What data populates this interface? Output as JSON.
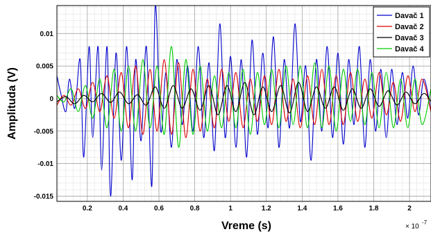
{
  "chart_data": {
    "type": "line",
    "xlabel": "Vreme (s)",
    "ylabel": "Amplituda (V)",
    "x_exponent_base": "× 10",
    "x_exponent_power": "-7",
    "xlim": [
      0.03,
      2.12
    ],
    "ylim": [
      -0.0158,
      0.0143
    ],
    "xticks": [
      0.2,
      0.4,
      0.6,
      0.8,
      1.0,
      1.2,
      1.4,
      1.6,
      1.8,
      2.0
    ],
    "xtick_labels": [
      "0.2",
      "0.4",
      "0.6",
      "0.8",
      "1",
      "1.2",
      "1.4",
      "1.6",
      "1.8",
      "2"
    ],
    "yticks": [
      0.01,
      0.005,
      0,
      -0.005,
      -0.01,
      -0.015
    ],
    "ytick_labels": [
      "0.01",
      "0.005",
      "0",
      "-0.005",
      "-0.01",
      "-0.015"
    ],
    "grid": true,
    "grid_minor": true,
    "legend_position": "top-right",
    "series": [
      {
        "name": "Davač 1",
        "color": "#0000cc",
        "x": [
          0.03,
          0.05,
          0.08,
          0.1,
          0.13,
          0.16,
          0.18,
          0.21,
          0.23,
          0.26,
          0.28,
          0.31,
          0.33,
          0.36,
          0.39,
          0.42,
          0.45,
          0.47,
          0.5,
          0.53,
          0.56,
          0.58,
          0.61,
          0.64,
          0.67,
          0.7,
          0.73,
          0.76,
          0.79,
          0.82,
          0.85,
          0.88,
          0.91,
          0.94,
          0.97,
          1.0,
          1.03,
          1.06,
          1.09,
          1.12,
          1.15,
          1.18,
          1.21,
          1.24,
          1.27,
          1.3,
          1.33,
          1.36,
          1.39,
          1.42,
          1.45,
          1.48,
          1.51,
          1.54,
          1.57,
          1.6,
          1.63,
          1.66,
          1.69,
          1.72,
          1.75,
          1.78,
          1.81,
          1.84,
          1.87,
          1.9,
          1.93,
          1.96,
          1.99,
          2.02,
          2.05,
          2.08,
          2.12
        ],
        "y": [
          0.0035,
          0.001,
          -0.002,
          0.003,
          -0.0015,
          0.006,
          -0.009,
          0.008,
          -0.006,
          0.008,
          -0.011,
          0.008,
          -0.015,
          0.007,
          -0.0095,
          0.008,
          -0.0125,
          0.006,
          -0.0065,
          0.008,
          -0.0135,
          0.0145,
          -0.005,
          0.004,
          -0.0075,
          0.006,
          -0.004,
          0.005,
          -0.005,
          0.008,
          -0.006,
          0.0055,
          -0.008,
          0.0115,
          -0.006,
          0.0065,
          -0.0075,
          0.006,
          -0.009,
          0.009,
          -0.0055,
          0.007,
          -0.0045,
          0.0095,
          -0.0075,
          0.006,
          -0.0045,
          0.0115,
          -0.0035,
          0.005,
          -0.0095,
          0.006,
          -0.005,
          0.008,
          -0.006,
          0.007,
          -0.007,
          0.006,
          -0.004,
          0.008,
          -0.0075,
          0.006,
          -0.005,
          0.0045,
          -0.006,
          0.0045,
          -0.004,
          0.004,
          -0.003,
          0.005,
          -0.0025,
          0.003,
          -0.002
        ]
      },
      {
        "name": "Davač 2",
        "color": "#dd0000",
        "x": [
          0.03,
          0.07,
          0.11,
          0.15,
          0.19,
          0.23,
          0.27,
          0.31,
          0.35,
          0.39,
          0.43,
          0.47,
          0.51,
          0.55,
          0.59,
          0.63,
          0.67,
          0.71,
          0.75,
          0.79,
          0.83,
          0.87,
          0.91,
          0.95,
          0.99,
          1.03,
          1.07,
          1.11,
          1.15,
          1.19,
          1.23,
          1.27,
          1.31,
          1.35,
          1.39,
          1.43,
          1.47,
          1.51,
          1.55,
          1.59,
          1.63,
          1.67,
          1.71,
          1.75,
          1.79,
          1.83,
          1.87,
          1.91,
          1.95,
          1.99,
          2.03,
          2.07,
          2.12
        ],
        "y": [
          -0.001,
          0.0005,
          -0.001,
          0.0015,
          -0.0015,
          0.0025,
          -0.002,
          0.0035,
          -0.003,
          0.004,
          -0.0045,
          0.005,
          -0.0055,
          0.0045,
          -0.005,
          0.006,
          -0.0055,
          0.0055,
          -0.006,
          0.0045,
          -0.005,
          0.003,
          -0.0045,
          0.0045,
          -0.0035,
          0.004,
          -0.0045,
          0.003,
          -0.0035,
          0.0035,
          -0.004,
          0.0045,
          -0.0035,
          0.003,
          -0.0045,
          0.0035,
          -0.004,
          0.0045,
          -0.004,
          0.0035,
          -0.004,
          0.004,
          -0.0035,
          0.003,
          -0.003,
          0.004,
          -0.0025,
          0.0025,
          -0.0035,
          0.0035,
          -0.002,
          0.003,
          -0.002
        ]
      },
      {
        "name": "Davač 3",
        "color": "#000000",
        "x": [
          0.03,
          0.08,
          0.13,
          0.18,
          0.23,
          0.28,
          0.33,
          0.38,
          0.43,
          0.48,
          0.53,
          0.58,
          0.63,
          0.68,
          0.73,
          0.78,
          0.83,
          0.88,
          0.93,
          0.98,
          1.03,
          1.08,
          1.13,
          1.18,
          1.23,
          1.28,
          1.33,
          1.38,
          1.43,
          1.48,
          1.53,
          1.58,
          1.63,
          1.68,
          1.73,
          1.78,
          1.83,
          1.88,
          1.93,
          1.98,
          2.03,
          2.08,
          2.12
        ],
        "y": [
          -0.0005,
          0.0003,
          -0.0008,
          0.0005,
          -0.0005,
          0.0008,
          -0.0006,
          0.001,
          -0.0008,
          0.0006,
          -0.001,
          0.0018,
          -0.0015,
          0.002,
          -0.0015,
          0.0015,
          -0.0018,
          0.002,
          -0.0025,
          0.002,
          -0.002,
          0.0025,
          -0.0025,
          0.0018,
          -0.002,
          0.002,
          -0.0022,
          0.0025,
          -0.002,
          0.0018,
          -0.0015,
          0.0018,
          -0.0018,
          0.0015,
          -0.0015,
          0.0015,
          -0.0012,
          0.0012,
          -0.001,
          0.001,
          -0.0008,
          0.0008,
          -0.0005
        ]
      },
      {
        "name": "Davač 4",
        "color": "#00cc00",
        "x": [
          0.03,
          0.07,
          0.11,
          0.15,
          0.19,
          0.23,
          0.27,
          0.31,
          0.35,
          0.39,
          0.43,
          0.47,
          0.51,
          0.55,
          0.59,
          0.63,
          0.67,
          0.71,
          0.75,
          0.79,
          0.83,
          0.87,
          0.91,
          0.95,
          0.99,
          1.03,
          1.07,
          1.11,
          1.15,
          1.19,
          1.23,
          1.27,
          1.31,
          1.35,
          1.39,
          1.43,
          1.47,
          1.51,
          1.55,
          1.59,
          1.63,
          1.67,
          1.71,
          1.75,
          1.79,
          1.83,
          1.87,
          1.91,
          1.95,
          1.99,
          2.03,
          2.07,
          2.12
        ],
        "y": [
          0.0005,
          -0.0005,
          0.0015,
          -0.002,
          0.002,
          -0.003,
          0.003,
          -0.0045,
          0.0045,
          -0.005,
          0.005,
          -0.005,
          0.006,
          -0.0045,
          0.005,
          -0.0055,
          0.008,
          -0.0075,
          0.006,
          -0.0055,
          0.005,
          -0.005,
          0.0035,
          -0.0045,
          0.004,
          -0.0045,
          0.0045,
          -0.0055,
          0.004,
          -0.004,
          0.0045,
          -0.0045,
          0.005,
          -0.004,
          0.005,
          -0.0045,
          0.0055,
          -0.0045,
          0.005,
          -0.005,
          0.0045,
          -0.0035,
          0.0045,
          -0.004,
          0.004,
          -0.0045,
          0.004,
          -0.0045,
          0.003,
          -0.0045,
          0.003,
          -0.004,
          0.0015
        ]
      }
    ]
  }
}
